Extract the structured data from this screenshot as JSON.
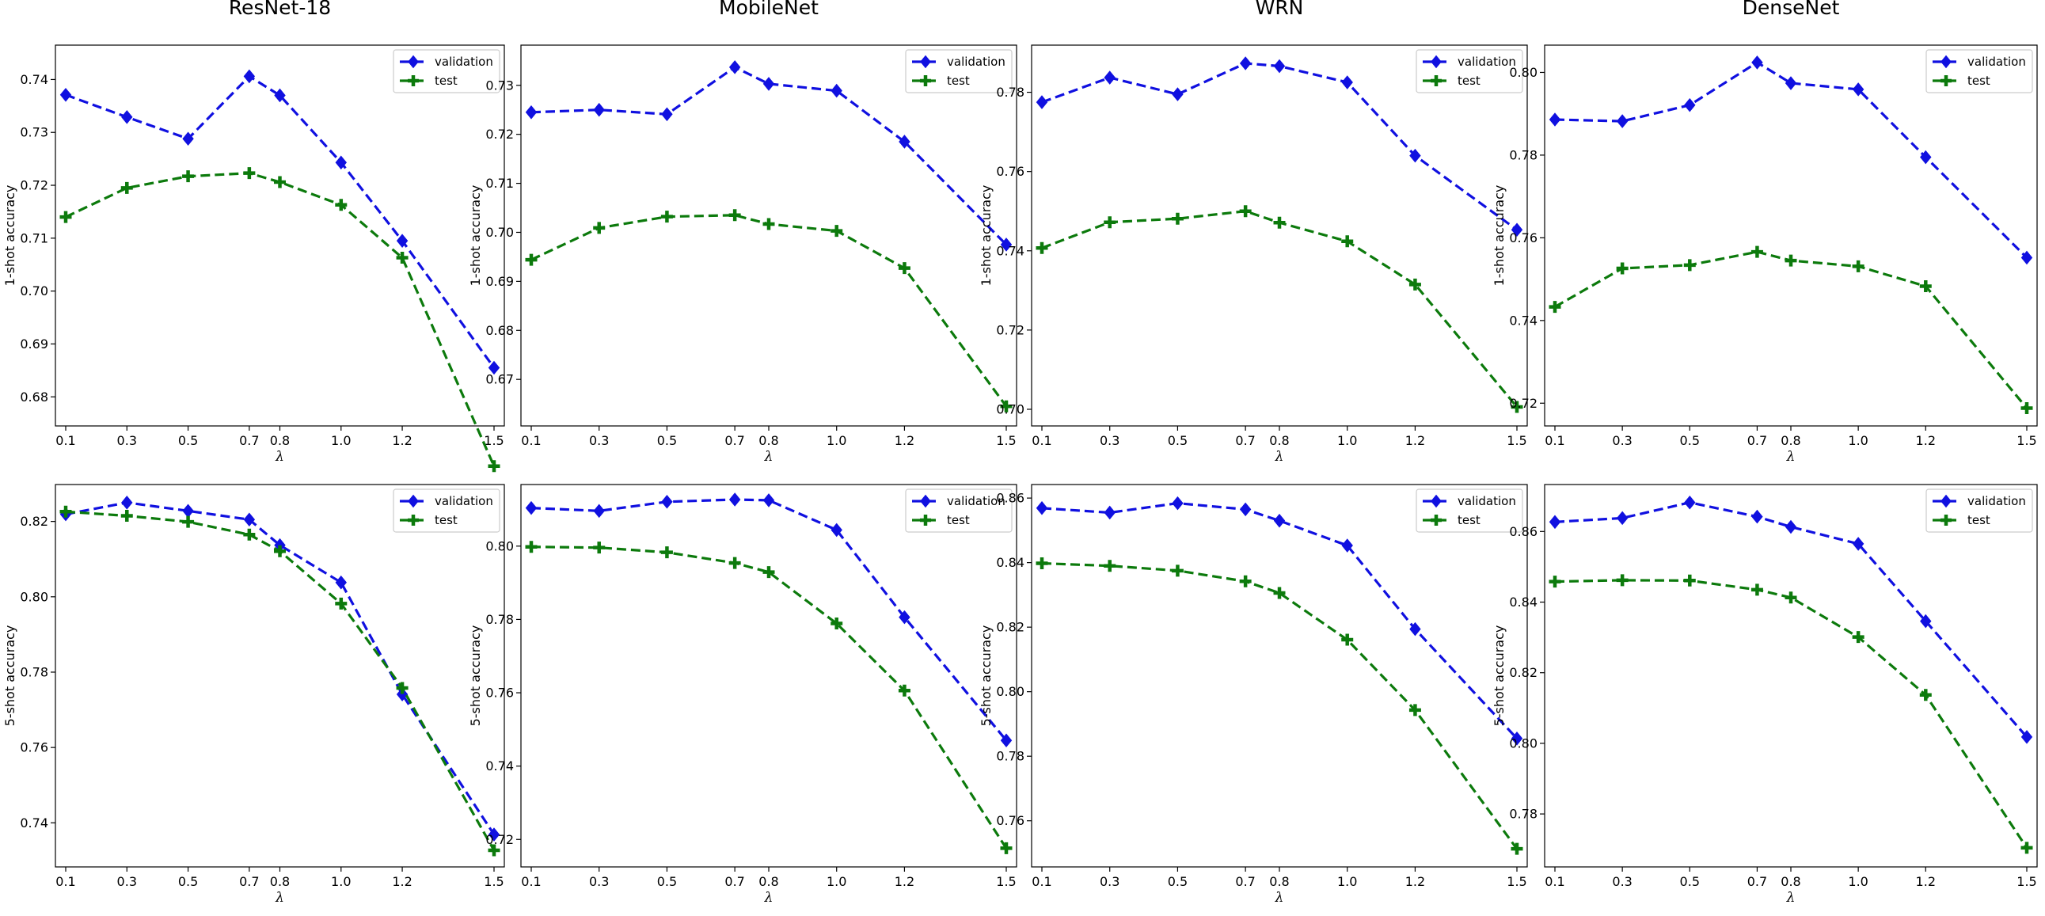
{
  "colors": {
    "validation": "#1010e0",
    "test": "#0c7a0c"
  },
  "chart_data": [
    {
      "type": "line",
      "title": "ResNet-18",
      "xlabel": "λ",
      "ylabel": "1-shot accuracy",
      "x": [
        0.1,
        0.3,
        0.5,
        0.7,
        0.8,
        1.0,
        1.2,
        1.5
      ],
      "xticks": [
        "0.1",
        "0.3",
        "0.5",
        "0.7",
        "0.8",
        "1.0",
        "1.2",
        "1.5"
      ],
      "yticks": [
        "0.68",
        "0.69",
        "0.70",
        "0.71",
        "0.72",
        "0.73",
        "0.74"
      ],
      "ylim": [
        0.6745,
        0.7465
      ],
      "legend": "top-right",
      "grid": false,
      "series": [
        {
          "name": "validation",
          "marker": "diamond",
          "values": [
            0.7371,
            0.7329,
            0.7288,
            0.7406,
            0.737,
            0.7243,
            0.7095,
            0.6855
          ]
        },
        {
          "name": "test",
          "marker": "plus",
          "values": [
            0.714,
            0.7195,
            0.7217,
            0.7223,
            0.7206,
            0.7163,
            0.7063,
            0.6669
          ]
        }
      ]
    },
    {
      "type": "line",
      "title": "MobileNet",
      "xlabel": "λ",
      "ylabel": "1-shot accuracy",
      "x": [
        0.1,
        0.3,
        0.5,
        0.7,
        0.8,
        1.0,
        1.2,
        1.5
      ],
      "xticks": [
        "0.1",
        "0.3",
        "0.5",
        "0.7",
        "0.8",
        "1.0",
        "1.2",
        "1.5"
      ],
      "yticks": [
        "0.67",
        "0.68",
        "0.69",
        "0.70",
        "0.71",
        "0.72",
        "0.73"
      ],
      "ylim": [
        0.6605,
        0.7382
      ],
      "legend": "top-right",
      "grid": false,
      "series": [
        {
          "name": "validation",
          "marker": "diamond",
          "values": [
            0.7245,
            0.725,
            0.7241,
            0.7337,
            0.7303,
            0.7289,
            0.7185,
            0.6975
          ]
        },
        {
          "name": "test",
          "marker": "plus",
          "values": [
            0.6944,
            0.7009,
            0.7032,
            0.7035,
            0.7017,
            0.7003,
            0.6927,
            0.6645
          ]
        }
      ]
    },
    {
      "type": "line",
      "title": "WRN",
      "xlabel": "λ",
      "ylabel": "1-shot accuracy",
      "x": [
        0.1,
        0.3,
        0.5,
        0.7,
        0.8,
        1.0,
        1.2,
        1.5
      ],
      "xticks": [
        "0.1",
        "0.3",
        "0.5",
        "0.7",
        "0.8",
        "1.0",
        "1.2",
        "1.5"
      ],
      "yticks": [
        "0.70",
        "0.72",
        "0.74",
        "0.76",
        "0.78"
      ],
      "ylim": [
        0.6958,
        0.7919
      ],
      "legend": "top-right",
      "grid": false,
      "series": [
        {
          "name": "validation",
          "marker": "diamond",
          "values": [
            0.7775,
            0.7837,
            0.7795,
            0.7873,
            0.7866,
            0.7825,
            0.764,
            0.7453
          ]
        },
        {
          "name": "test",
          "marker": "plus",
          "values": [
            0.7407,
            0.7472,
            0.7481,
            0.75,
            0.7471,
            0.7424,
            0.7315,
            0.7006
          ]
        }
      ]
    },
    {
      "type": "line",
      "title": "DenseNet",
      "xlabel": "λ",
      "ylabel": "1-shot accuracy",
      "x": [
        0.1,
        0.3,
        0.5,
        0.7,
        0.8,
        1.0,
        1.2,
        1.5
      ],
      "xticks": [
        "0.1",
        "0.3",
        "0.5",
        "0.7",
        "0.8",
        "1.0",
        "1.2",
        "1.5"
      ],
      "yticks": [
        "0.72",
        "0.74",
        "0.76",
        "0.78",
        "0.80"
      ],
      "ylim": [
        0.7145,
        0.8066
      ],
      "legend": "top-right",
      "grid": false,
      "series": [
        {
          "name": "validation",
          "marker": "diamond",
          "values": [
            0.7886,
            0.7882,
            0.7921,
            0.8024,
            0.7974,
            0.7959,
            0.7795,
            0.7552
          ]
        },
        {
          "name": "test",
          "marker": "plus",
          "values": [
            0.7433,
            0.7526,
            0.7534,
            0.7566,
            0.7545,
            0.7531,
            0.7483,
            0.7188
          ]
        }
      ]
    },
    {
      "type": "line",
      "title": "",
      "xlabel": "λ",
      "ylabel": "5-shot accuracy",
      "x": [
        0.1,
        0.3,
        0.5,
        0.7,
        0.8,
        1.0,
        1.2,
        1.5
      ],
      "xticks": [
        "0.1",
        "0.3",
        "0.5",
        "0.7",
        "0.8",
        "1.0",
        "1.2",
        "1.5"
      ],
      "yticks": [
        "0.74",
        "0.76",
        "0.78",
        "0.80",
        "0.82"
      ],
      "ylim": [
        0.7283,
        0.8298
      ],
      "legend": "top-right",
      "grid": false,
      "series": [
        {
          "name": "validation",
          "marker": "diamond",
          "values": [
            0.8219,
            0.825,
            0.8228,
            0.8205,
            0.8137,
            0.8038,
            0.7741,
            0.7369
          ]
        },
        {
          "name": "test",
          "marker": "plus",
          "values": [
            0.8226,
            0.8215,
            0.8199,
            0.8165,
            0.8121,
            0.7982,
            0.7758,
            0.7327
          ]
        }
      ]
    },
    {
      "type": "line",
      "title": "",
      "xlabel": "λ",
      "ylabel": "5-shot accuracy",
      "x": [
        0.1,
        0.3,
        0.5,
        0.7,
        0.8,
        1.0,
        1.2,
        1.5
      ],
      "xticks": [
        "0.1",
        "0.3",
        "0.5",
        "0.7",
        "0.8",
        "1.0",
        "1.2",
        "1.5"
      ],
      "yticks": [
        "0.72",
        "0.74",
        "0.76",
        "0.78",
        "0.80"
      ],
      "ylim": [
        0.7125,
        0.8168
      ],
      "legend": "top-right",
      "grid": false,
      "series": [
        {
          "name": "validation",
          "marker": "diamond",
          "values": [
            0.8104,
            0.8096,
            0.8121,
            0.8127,
            0.8125,
            0.8044,
            0.7806,
            0.747
          ]
        },
        {
          "name": "test",
          "marker": "plus",
          "values": [
            0.7998,
            0.7996,
            0.7983,
            0.7954,
            0.7929,
            0.7789,
            0.7606,
            0.7176
          ]
        }
      ]
    },
    {
      "type": "line",
      "title": "",
      "xlabel": "λ",
      "ylabel": "5-shot accuracy",
      "x": [
        0.1,
        0.3,
        0.5,
        0.7,
        0.8,
        1.0,
        1.2,
        1.5
      ],
      "xticks": [
        "0.1",
        "0.3",
        "0.5",
        "0.7",
        "0.8",
        "1.0",
        "1.2",
        "1.5"
      ],
      "yticks": [
        "0.76",
        "0.78",
        "0.80",
        "0.82",
        "0.84",
        "0.86"
      ],
      "ylim": [
        0.7457,
        0.8642
      ],
      "legend": "top-right",
      "grid": false,
      "series": [
        {
          "name": "validation",
          "marker": "diamond",
          "values": [
            0.8569,
            0.8555,
            0.8584,
            0.8565,
            0.853,
            0.8453,
            0.8194,
            0.7855
          ]
        },
        {
          "name": "test",
          "marker": "plus",
          "values": [
            0.8398,
            0.839,
            0.8375,
            0.8342,
            0.8306,
            0.8161,
            0.7943,
            0.7513
          ]
        }
      ]
    },
    {
      "type": "line",
      "title": "",
      "xlabel": "λ",
      "ylabel": "5-shot accuracy",
      "x": [
        0.1,
        0.3,
        0.5,
        0.7,
        0.8,
        1.0,
        1.2,
        1.5
      ],
      "xticks": [
        "0.1",
        "0.3",
        "0.5",
        "0.7",
        "0.8",
        "1.0",
        "1.2",
        "1.5"
      ],
      "yticks": [
        "0.78",
        "0.80",
        "0.82",
        "0.84",
        "0.86"
      ],
      "ylim": [
        0.765,
        0.8733
      ],
      "legend": "top-right",
      "grid": false,
      "series": [
        {
          "name": "validation",
          "marker": "diamond",
          "values": [
            0.8627,
            0.8638,
            0.8682,
            0.8642,
            0.8613,
            0.8565,
            0.8346,
            0.8018
          ]
        },
        {
          "name": "test",
          "marker": "plus",
          "values": [
            0.8458,
            0.8462,
            0.8461,
            0.8435,
            0.8413,
            0.8301,
            0.8137,
            0.7704
          ]
        }
      ]
    }
  ]
}
